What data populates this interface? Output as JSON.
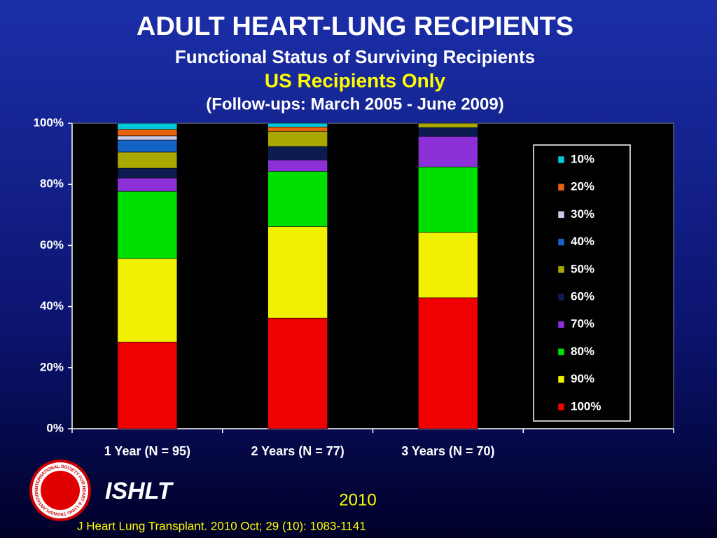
{
  "chart_data": {
    "type": "stacked-bar",
    "title": "ADULT HEART-LUNG RECIPIENTS",
    "subtitle": "Functional Status of Surviving Recipients",
    "subtitle2": "US Recipients Only",
    "subtitle3": "(Follow-ups: March 2005 - June 2009)",
    "categories": [
      "1 Year  (N = 95)",
      "2 Years  (N = 77)",
      "3 Years  (N = 70)",
      null
    ],
    "series": [
      {
        "name": "10%",
        "color": "#00c8dc",
        "values": [
          2.0,
          1.2,
          0,
          null
        ]
      },
      {
        "name": "20%",
        "color": "#e8640c",
        "values": [
          2.1,
          1.4,
          0,
          null
        ]
      },
      {
        "name": "30%",
        "color": "#c8c8e8",
        "values": [
          1.4,
          0,
          0,
          null
        ]
      },
      {
        "name": "40%",
        "color": "#1464c8",
        "values": [
          3.9,
          0,
          0,
          null
        ]
      },
      {
        "name": "50%",
        "color": "#a8a800",
        "values": [
          5.3,
          5.0,
          1.4,
          null
        ]
      },
      {
        "name": "60%",
        "color": "#0c1c50",
        "values": [
          3.2,
          4.4,
          2.9,
          null
        ]
      },
      {
        "name": "70%",
        "color": "#8c30d8",
        "values": [
          4.4,
          3.7,
          10.0,
          null
        ]
      },
      {
        "name": "80%",
        "color": "#00e000",
        "values": [
          22.0,
          18.1,
          21.4,
          null
        ]
      },
      {
        "name": "90%",
        "color": "#f0f000",
        "values": [
          27.3,
          30.0,
          21.4,
          null
        ]
      },
      {
        "name": "100%",
        "color": "#f00000",
        "values": [
          28.4,
          36.2,
          42.9,
          null
        ]
      }
    ],
    "ylim": [
      0,
      100
    ],
    "yticks": [
      {
        "value": 0,
        "label": "0%"
      },
      {
        "value": 20,
        "label": "20%"
      },
      {
        "value": 40,
        "label": "40%"
      },
      {
        "value": 60,
        "label": "60%"
      },
      {
        "value": 80,
        "label": "80%"
      },
      {
        "value": 100,
        "label": "100%"
      }
    ],
    "grid": false,
    "legend": "right"
  },
  "footer": {
    "logo_text": "INTERNATIONAL SOCIETY FOR HEART & LUNG TRANSPLANTATION",
    "brand": "ISHLT",
    "year": "2010",
    "citation": "J Heart Lung Transplant. 2010 Oct; 29 (10): 1083-1141"
  }
}
